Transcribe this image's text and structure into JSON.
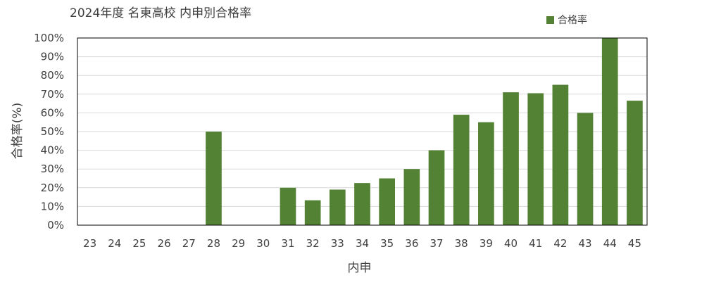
{
  "chart_data": {
    "type": "bar",
    "title": "2024年度 名東高校 内申別合格率",
    "xlabel": "内申",
    "ylabel": "合格率(%)",
    "ylim": [
      0,
      100
    ],
    "ytick_step": 10,
    "ytick_suffix": "%",
    "grid": true,
    "legend_position": "top-right",
    "categories": [
      "23",
      "24",
      "25",
      "26",
      "27",
      "28",
      "29",
      "30",
      "31",
      "32",
      "33",
      "34",
      "35",
      "36",
      "37",
      "38",
      "39",
      "40",
      "41",
      "42",
      "43",
      "44",
      "45"
    ],
    "series": [
      {
        "name": "合格率",
        "color": "#548235",
        "values": [
          0,
          0,
          0,
          0,
          0,
          50,
          0,
          0,
          20,
          13.3,
          19,
          22.5,
          25,
          30,
          40,
          59,
          55,
          71,
          70.5,
          75,
          60,
          100,
          66.5
        ]
      }
    ]
  }
}
